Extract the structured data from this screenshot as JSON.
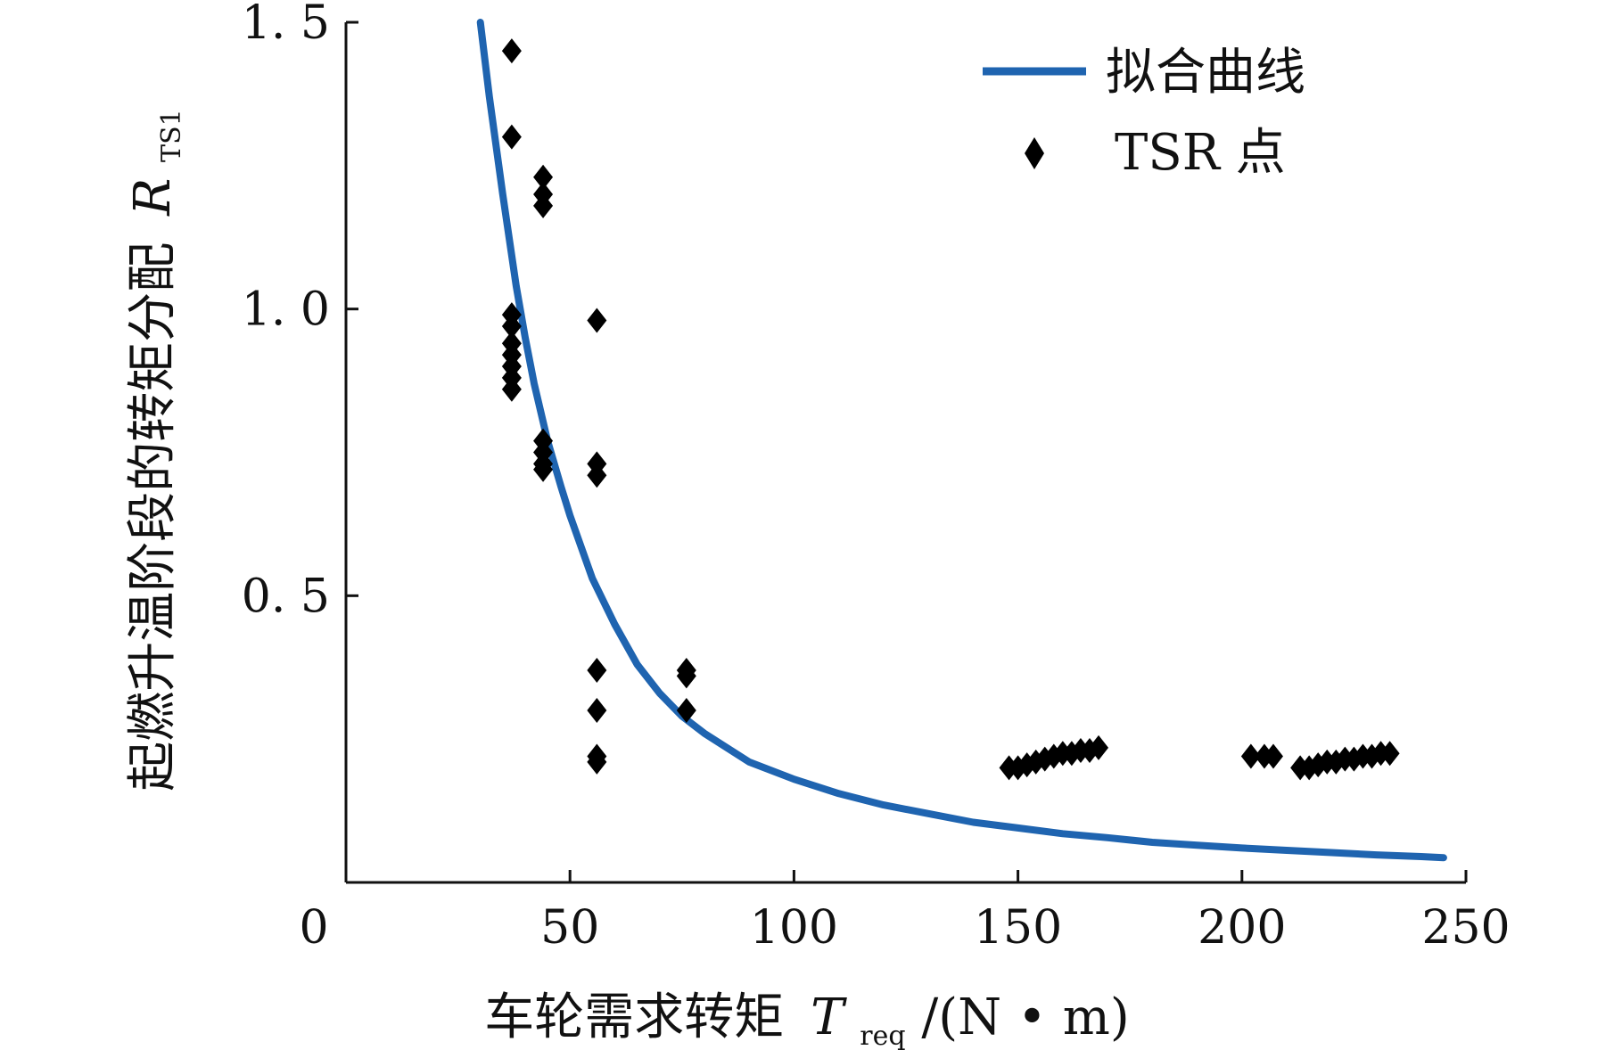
{
  "chart_data": {
    "type": "scatter",
    "xlabel_text": "车轮需求转矩",
    "xlabel_symbol": "T",
    "xlabel_sub": "req",
    "xlabel_unit": "/(N • m)",
    "ylabel_text": "起燃升温阶段的转矩分配",
    "ylabel_symbol": "R",
    "ylabel_sub": "TS1",
    "xlim": [
      0,
      250
    ],
    "ylim": [
      0,
      1.5
    ],
    "x_ticks": [
      0,
      50,
      100,
      150,
      200,
      250
    ],
    "x_tick_labels": [
      "0",
      "50",
      "100",
      "150",
      "200",
      "250"
    ],
    "y_ticks": [
      0.5,
      1.0,
      1.5
    ],
    "y_tick_labels": [
      "0. 5",
      "1. 0",
      "1. 5"
    ],
    "legend_position": "top-right",
    "series": [
      {
        "name": "拟合曲线",
        "type": "line",
        "color": "#1f64b0",
        "x": [
          30,
          32,
          35,
          38,
          40,
          42,
          45,
          48,
          50,
          55,
          60,
          65,
          70,
          75,
          80,
          90,
          100,
          110,
          120,
          130,
          140,
          150,
          160,
          170,
          180,
          190,
          200,
          210,
          220,
          230,
          240,
          245
        ],
        "y": [
          1.5,
          1.37,
          1.2,
          1.04,
          0.95,
          0.87,
          0.77,
          0.69,
          0.64,
          0.53,
          0.45,
          0.38,
          0.33,
          0.29,
          0.26,
          0.21,
          0.18,
          0.155,
          0.135,
          0.12,
          0.105,
          0.095,
          0.085,
          0.078,
          0.07,
          0.065,
          0.06,
          0.056,
          0.052,
          0.048,
          0.045,
          0.043
        ]
      },
      {
        "name": "TSR 点",
        "type": "scatter",
        "marker": "diamond",
        "color": "#000000",
        "x": [
          37,
          37,
          37,
          37,
          37,
          37,
          37,
          37,
          37,
          44,
          44,
          44,
          44,
          44,
          44,
          44,
          56,
          56,
          56,
          56,
          56,
          56,
          56,
          76,
          76,
          76,
          148,
          150,
          152,
          154,
          156,
          158,
          160,
          162,
          164,
          166,
          168,
          202,
          205,
          207,
          213,
          215,
          217,
          219,
          221,
          223,
          225,
          227,
          229,
          231,
          233
        ],
        "y": [
          1.45,
          1.3,
          0.99,
          0.97,
          0.94,
          0.92,
          0.9,
          0.88,
          0.86,
          1.23,
          1.2,
          1.18,
          0.77,
          0.75,
          0.73,
          0.72,
          0.98,
          0.73,
          0.71,
          0.37,
          0.3,
          0.22,
          0.21,
          0.37,
          0.36,
          0.3,
          0.2,
          0.2,
          0.205,
          0.21,
          0.215,
          0.22,
          0.225,
          0.225,
          0.23,
          0.23,
          0.235,
          0.22,
          0.22,
          0.22,
          0.2,
          0.2,
          0.205,
          0.21,
          0.21,
          0.215,
          0.215,
          0.22,
          0.22,
          0.225,
          0.225
        ]
      }
    ]
  }
}
